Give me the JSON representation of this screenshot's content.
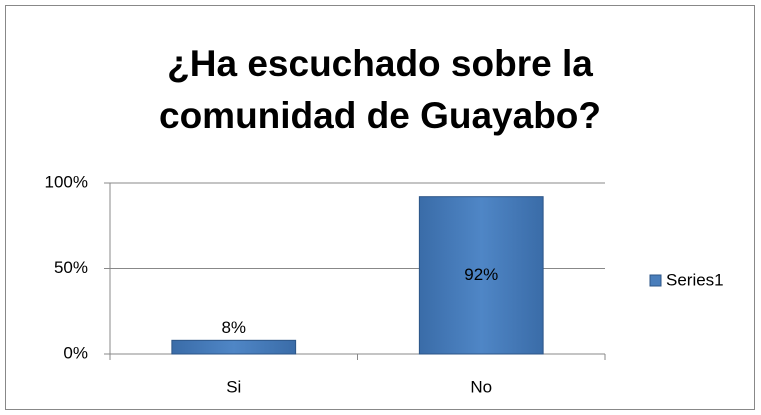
{
  "chart_data": {
    "type": "bar",
    "title": "¿Ha escuchado sobre la comunidad de Guayabo?",
    "categories": [
      "Si",
      "No"
    ],
    "values": [
      8,
      92
    ],
    "value_labels": [
      "8%",
      "92%"
    ],
    "series_name": "Series1",
    "color": "#4a7ebb",
    "ylim": [
      0,
      100
    ],
    "yticks": [
      {
        "value": 0,
        "label": "0%"
      },
      {
        "value": 50,
        "label": "50%"
      },
      {
        "value": 100,
        "label": "100%"
      }
    ],
    "grid": true,
    "legend": "right"
  }
}
